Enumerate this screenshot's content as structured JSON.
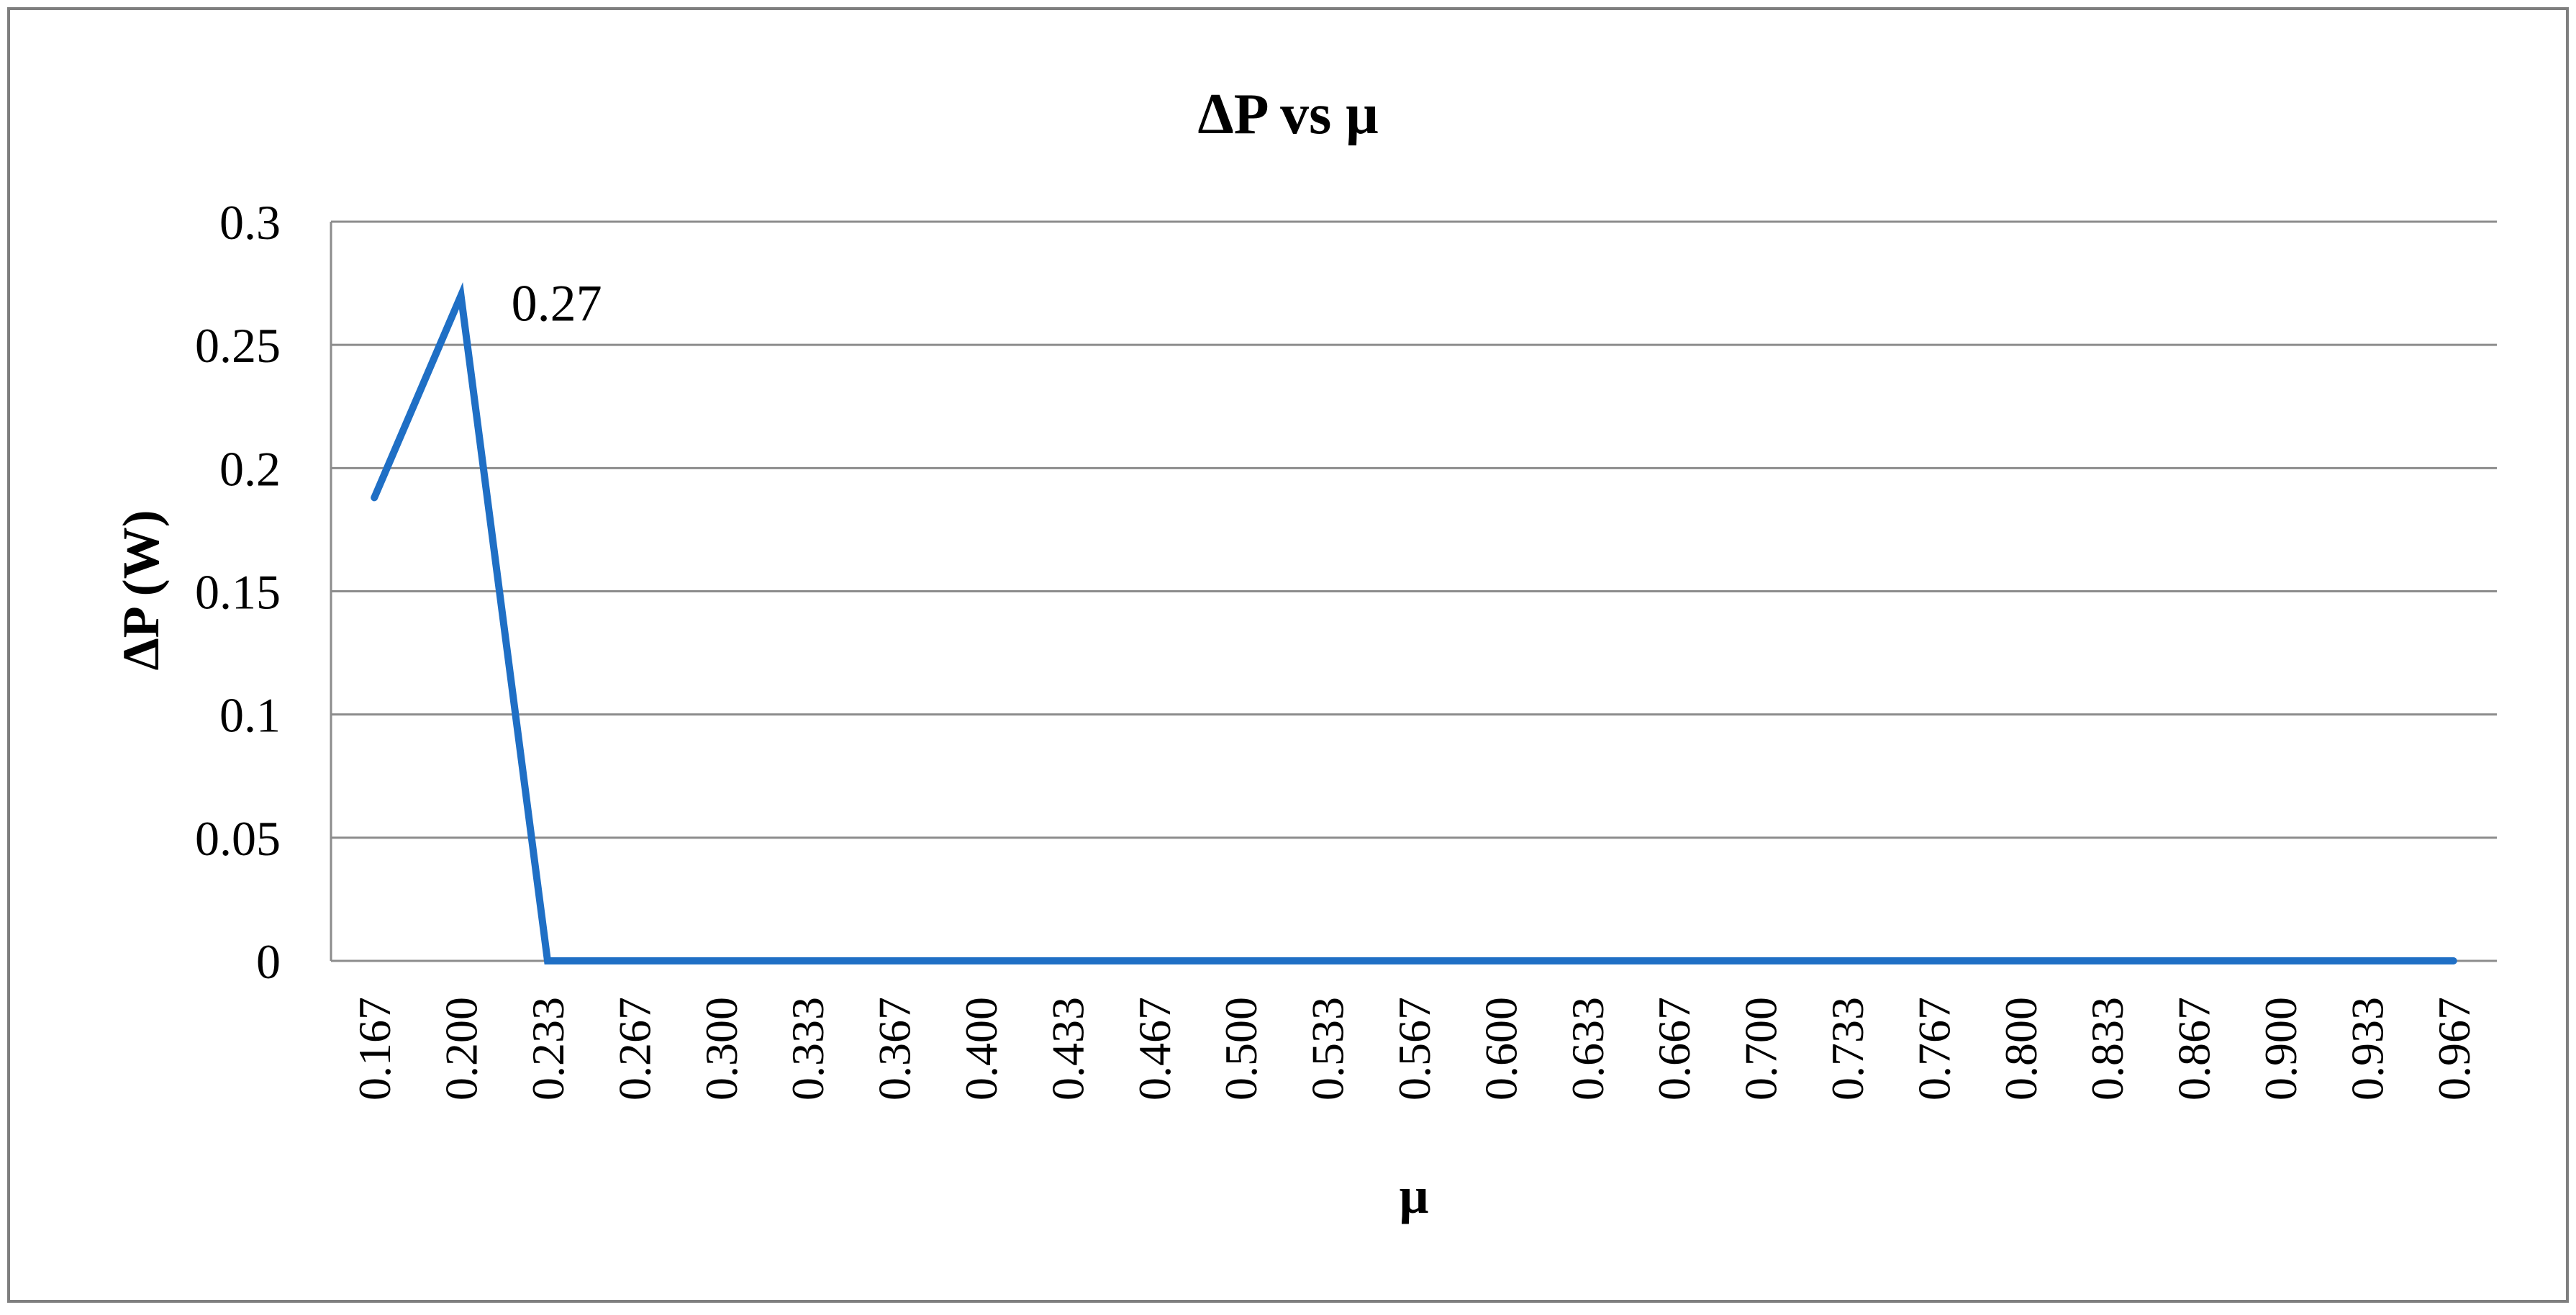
{
  "chart_data": {
    "type": "line",
    "title": "ΔP vs μ",
    "xlabel": "μ",
    "ylabel": "ΔP (W)",
    "categories": [
      "0.167",
      "0.200",
      "0.233",
      "0.267",
      "0.300",
      "0.333",
      "0.367",
      "0.400",
      "0.433",
      "0.467",
      "0.500",
      "0.533",
      "0.567",
      "0.600",
      "0.633",
      "0.667",
      "0.700",
      "0.733",
      "0.767",
      "0.800",
      "0.833",
      "0.867",
      "0.900",
      "0.933",
      "0.967"
    ],
    "series": [
      {
        "values": [
          0.188,
          0.27,
          0,
          0,
          0,
          0,
          0,
          0,
          0,
          0,
          0,
          0,
          0,
          0,
          0,
          0,
          0,
          0,
          0,
          0,
          0,
          0,
          0,
          0,
          0
        ]
      }
    ],
    "ylim": [
      0,
      0.3
    ],
    "yticks": [
      "0",
      "0.05",
      "0.1",
      "0.15",
      "0.2",
      "0.25",
      "0.3"
    ],
    "data_labels": [
      {
        "index": 1,
        "text": "0.27"
      }
    ],
    "grid": true,
    "legend": "none",
    "colors": {
      "series": "#1f6fc5",
      "grid": "#8c8c8c",
      "border": "#7f7f7f"
    }
  }
}
